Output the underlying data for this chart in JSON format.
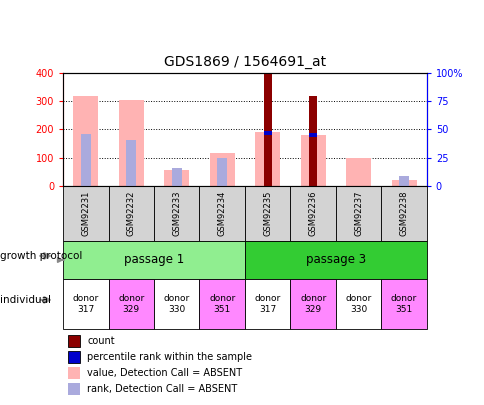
{
  "title": "GDS1869 / 1564691_at",
  "samples": [
    "GSM92231",
    "GSM92232",
    "GSM92233",
    "GSM92234",
    "GSM92235",
    "GSM92236",
    "GSM92237",
    "GSM92238"
  ],
  "count_values": [
    null,
    null,
    null,
    null,
    400,
    320,
    null,
    null
  ],
  "count_color": "#8B0000",
  "percentile_rank": [
    null,
    null,
    null,
    null,
    47,
    45,
    null,
    null
  ],
  "percentile_rank_color": "#0000CC",
  "value_absent": [
    317,
    305,
    55,
    117,
    190,
    182,
    98,
    22
  ],
  "value_absent_color": "#FFB3B3",
  "rank_absent": [
    46,
    41,
    16,
    25,
    null,
    null,
    null,
    9
  ],
  "rank_absent_color": "#AAAADD",
  "ylim_left": [
    0,
    400
  ],
  "ylim_right": [
    0,
    100
  ],
  "yticks_left": [
    0,
    100,
    200,
    300,
    400
  ],
  "yticks_right": [
    0,
    25,
    50,
    75,
    100
  ],
  "ytick_labels_right": [
    "0",
    "25",
    "50",
    "75",
    "100%"
  ],
  "passage_1_color": "#90EE90",
  "passage_3_color": "#33CC33",
  "individual_colors": [
    "white",
    "#FF88FF",
    "white",
    "#FF88FF",
    "white",
    "#FF88FF",
    "white",
    "#FF88FF"
  ],
  "individual_labels": [
    "donor\n317",
    "donor\n329",
    "donor\n330",
    "donor\n351",
    "donor\n317",
    "donor\n329",
    "donor\n330",
    "donor\n351"
  ],
  "legend_items": [
    "count",
    "percentile rank within the sample",
    "value, Detection Call = ABSENT",
    "rank, Detection Call = ABSENT"
  ],
  "legend_colors": [
    "#8B0000",
    "#0000CC",
    "#FFB3B3",
    "#AAAADD"
  ],
  "n_samples": 8
}
